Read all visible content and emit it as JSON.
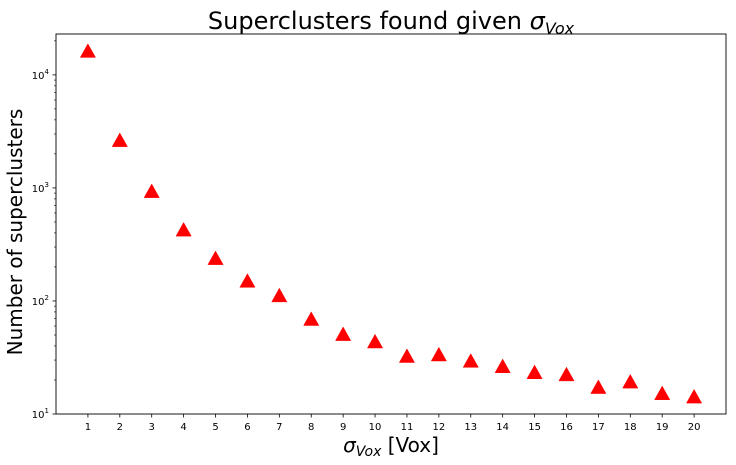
{
  "chart_data": {
    "type": "scatter",
    "title": {
      "main": "Superclusters found given ",
      "symbol": "σ",
      "subscript": "Vox"
    },
    "xlabel": {
      "symbol": "σ",
      "subscript": "Vox",
      "rest": " [Vox]"
    },
    "ylabel": "Number of superclusters",
    "x": [
      1,
      2,
      3,
      4,
      5,
      6,
      7,
      8,
      9,
      10,
      11,
      12,
      13,
      14,
      15,
      16,
      17,
      18,
      19,
      20
    ],
    "y": [
      16000,
      2600,
      920,
      420,
      235,
      148,
      110,
      68,
      50,
      43,
      32,
      33,
      29,
      26,
      23,
      22,
      17,
      19,
      15,
      14
    ],
    "xlim": [
      0.0,
      21.0
    ],
    "ylim": [
      10,
      23000
    ],
    "yscale": "log",
    "x_ticks": [
      "1",
      "2",
      "3",
      "4",
      "5",
      "6",
      "7",
      "8",
      "9",
      "10",
      "11",
      "12",
      "13",
      "14",
      "15",
      "16",
      "17",
      "18",
      "19",
      "20"
    ],
    "y_ticks": [
      {
        "value": 10,
        "base": "10",
        "exp": "1"
      },
      {
        "value": 100,
        "base": "10",
        "exp": "2"
      },
      {
        "value": 1000,
        "base": "10",
        "exp": "3"
      },
      {
        "value": 10000,
        "base": "10",
        "exp": "4"
      }
    ],
    "marker": "triangle",
    "marker_color": "#ff0000",
    "grid": false,
    "legend": "none"
  }
}
